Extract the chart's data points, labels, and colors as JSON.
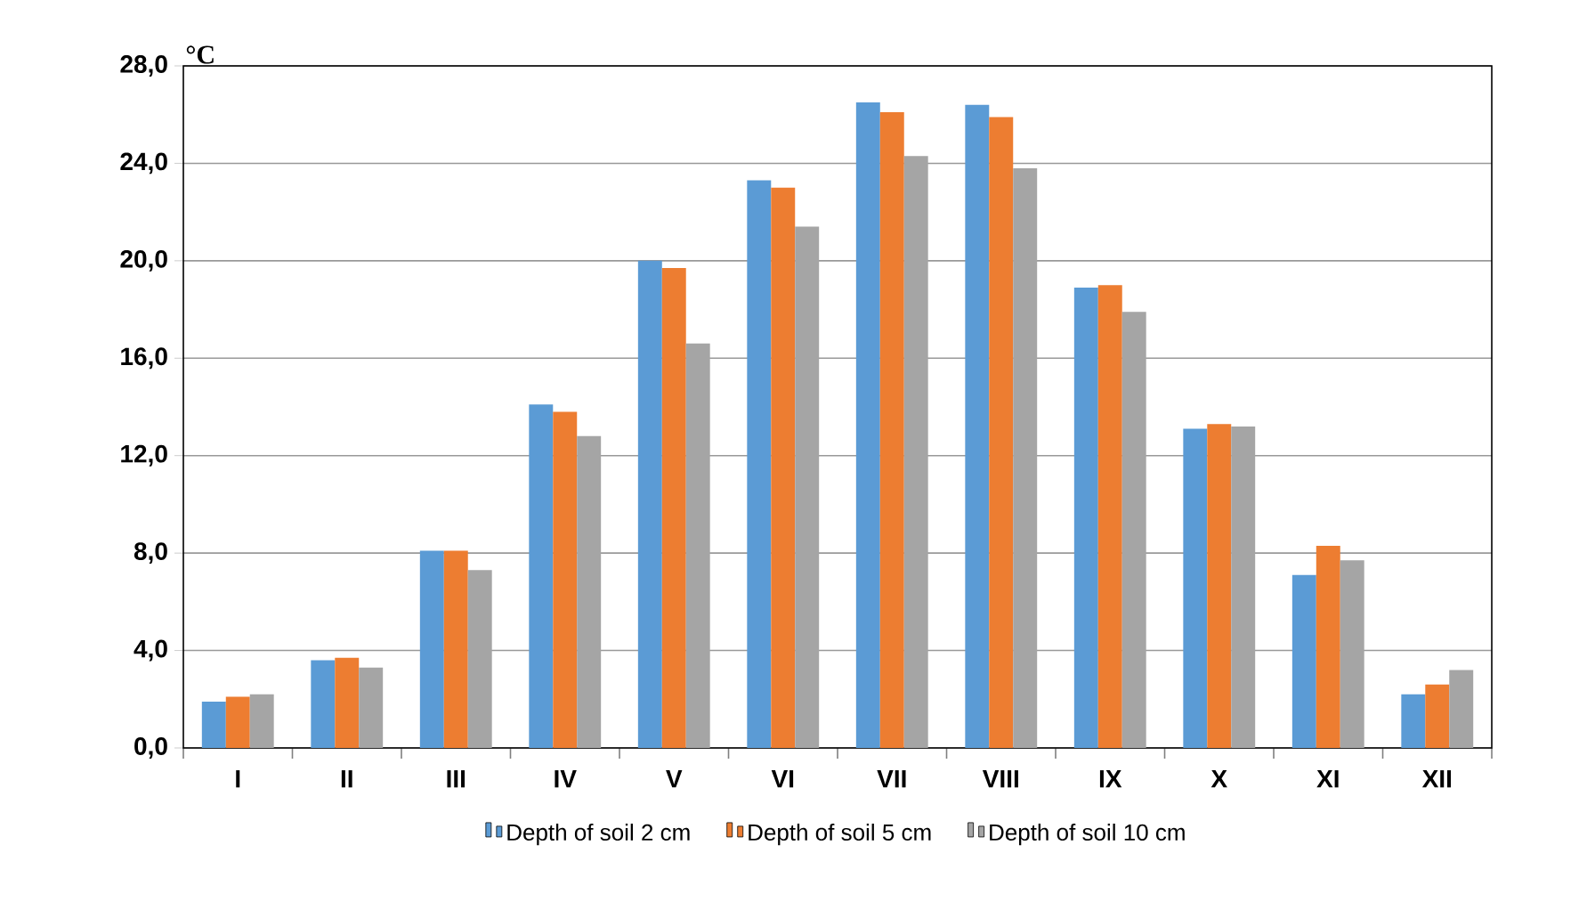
{
  "chart_data": {
    "type": "bar",
    "ylabel": "°C",
    "categories": [
      "I",
      "II",
      "III",
      "IV",
      "V",
      "VI",
      "VII",
      "VIII",
      "IX",
      "X",
      "XI",
      "XII"
    ],
    "series": [
      {
        "name": "Depth of soil 2 cm",
        "color": "#5b9bd5",
        "values": [
          1.9,
          3.6,
          8.1,
          14.1,
          20.0,
          23.3,
          26.5,
          26.4,
          18.9,
          13.1,
          7.1,
          2.2
        ]
      },
      {
        "name": "Depth of soil 5 cm",
        "color": "#ed7d31",
        "values": [
          2.1,
          3.7,
          8.1,
          13.8,
          19.7,
          23.0,
          26.1,
          25.9,
          19.0,
          13.3,
          8.3,
          2.6
        ]
      },
      {
        "name": "Depth of soil 10 cm",
        "color": "#a5a5a5",
        "values": [
          2.2,
          3.3,
          7.3,
          12.8,
          16.6,
          21.4,
          24.3,
          23.8,
          17.9,
          13.2,
          7.7,
          3.2
        ]
      }
    ],
    "ylim": [
      0,
      28
    ],
    "yticks": [
      {
        "value": 0,
        "label": "0,0"
      },
      {
        "value": 4,
        "label": "4,0"
      },
      {
        "value": 8,
        "label": "8,0"
      },
      {
        "value": 12,
        "label": "12,0"
      },
      {
        "value": 16,
        "label": "16,0"
      },
      {
        "value": 20,
        "label": "20,0"
      },
      {
        "value": 24,
        "label": "24,0"
      },
      {
        "value": 28,
        "label": "28,0"
      }
    ],
    "grid": "y",
    "legend": "bottom"
  }
}
